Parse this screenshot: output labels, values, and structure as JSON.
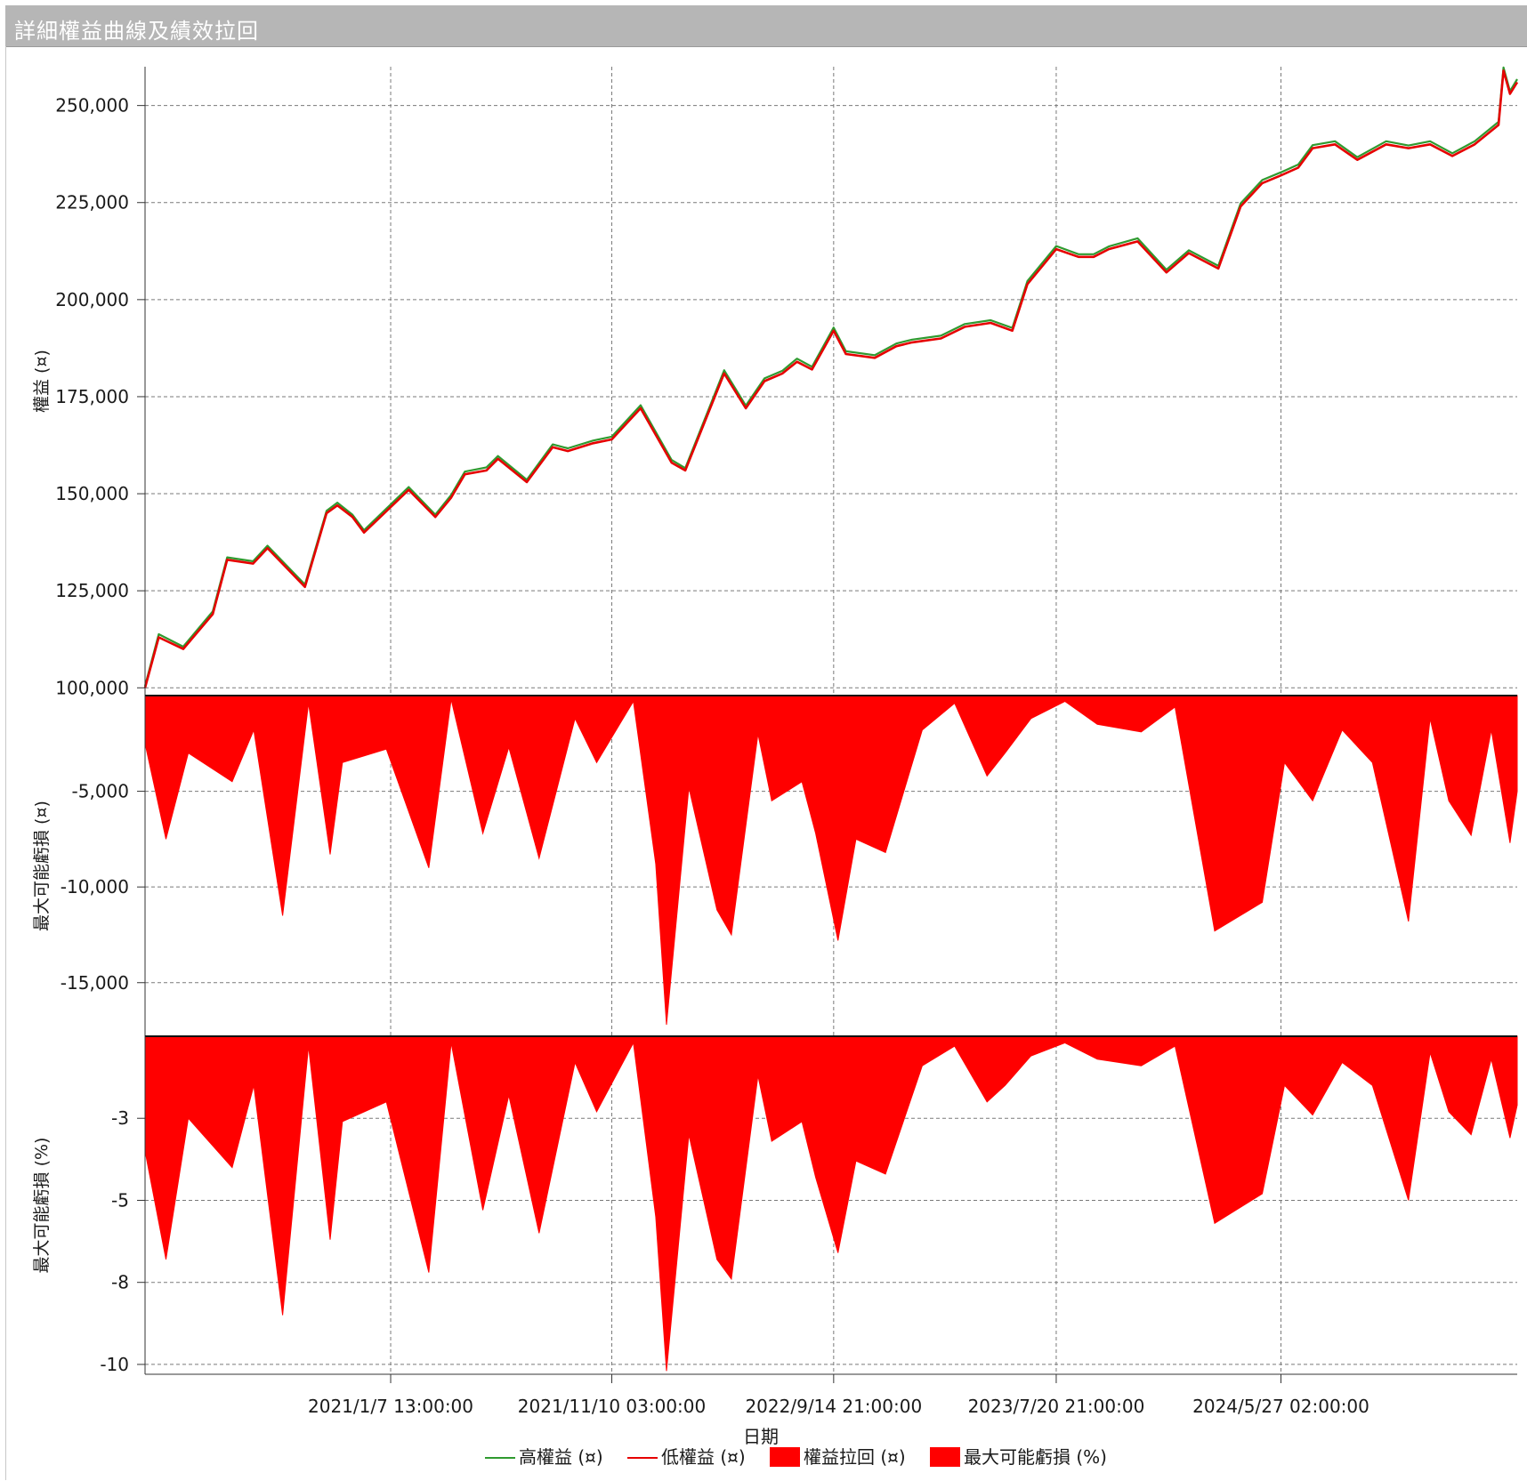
{
  "window": {
    "title": "詳細權益曲線及績效拉回"
  },
  "chart_data": [
    {
      "panel": "equity",
      "type": "line",
      "ylabel": "權益 (¤)",
      "y_ticks": [
        "250,000",
        "225,000",
        "200,000",
        "175,000",
        "150,000",
        "125,000",
        "100,000"
      ],
      "y_tick_values": [
        250000,
        225000,
        200000,
        175000,
        150000,
        125000,
        100000
      ],
      "ylim": [
        98000,
        260000
      ],
      "xlim": [
        "2020-02-01",
        "2025-04-20"
      ],
      "x": [
        "2020-02-01",
        "2020-02-20",
        "2020-03-25",
        "2020-05-05",
        "2020-05-25",
        "2020-06-30",
        "2020-07-20",
        "2020-09-10",
        "2020-10-10",
        "2020-10-25",
        "2020-11-15",
        "2020-12-01",
        "2021-02-01",
        "2021-03-10",
        "2021-04-01",
        "2021-04-20",
        "2021-05-20",
        "2021-06-05",
        "2021-07-15",
        "2021-08-20",
        "2021-09-10",
        "2021-10-15",
        "2021-11-10",
        "2021-12-20",
        "2022-02-01",
        "2022-02-20",
        "2022-03-20",
        "2022-04-15",
        "2022-05-15",
        "2022-06-10",
        "2022-07-05",
        "2022-07-25",
        "2022-08-15",
        "2022-09-14",
        "2022-10-01",
        "2022-11-10",
        "2022-12-10",
        "2023-01-01",
        "2023-02-10",
        "2023-03-15",
        "2023-04-20",
        "2023-05-20",
        "2023-06-10",
        "2023-07-20",
        "2023-08-20",
        "2023-09-10",
        "2023-10-01",
        "2023-11-10",
        "2023-12-20",
        "2024-01-20",
        "2024-03-01",
        "2024-04-01",
        "2024-05-01",
        "2024-05-27",
        "2024-06-20",
        "2024-07-10",
        "2024-08-10",
        "2024-09-10",
        "2024-10-20",
        "2024-11-20",
        "2024-12-20",
        "2025-01-20",
        "2025-02-20",
        "2025-03-25",
        "2025-04-01",
        "2025-04-10",
        "2025-04-20"
      ],
      "series": [
        {
          "name": "低權益 (¤)",
          "color": "#e60000",
          "values": [
            100000,
            113000,
            110000,
            119000,
            133000,
            132000,
            136000,
            126000,
            145000,
            147000,
            144000,
            140000,
            151000,
            144000,
            149000,
            155000,
            156000,
            159000,
            153000,
            162000,
            161000,
            163000,
            164000,
            172000,
            158000,
            156000,
            169000,
            181000,
            172000,
            179000,
            181000,
            184000,
            182000,
            192000,
            186000,
            185000,
            188000,
            189000,
            190000,
            193000,
            194000,
            192000,
            204000,
            213000,
            211000,
            211000,
            213000,
            215000,
            207000,
            212000,
            208000,
            224000,
            230000,
            232000,
            234000,
            239000,
            240000,
            236000,
            240000,
            239000,
            240000,
            237000,
            240000,
            245000,
            259000,
            253000,
            256000
          ]
        },
        {
          "name": "高權益 (¤)",
          "color": "#2f9a2f",
          "values": [
            100500,
            113800,
            110600,
            119700,
            133600,
            132600,
            136600,
            126600,
            145600,
            147700,
            144600,
            140600,
            151700,
            144600,
            149700,
            155700,
            156800,
            159700,
            153600,
            162700,
            161700,
            163700,
            164700,
            172800,
            158700,
            156600,
            169700,
            181800,
            172700,
            179700,
            181700,
            184800,
            182700,
            192800,
            186700,
            185700,
            188700,
            189700,
            190700,
            193700,
            194700,
            192700,
            204800,
            213800,
            211700,
            211700,
            213700,
            215800,
            207700,
            212700,
            208700,
            224800,
            230800,
            232800,
            234800,
            239800,
            240800,
            236700,
            240800,
            239700,
            240800,
            237700,
            240800,
            245800,
            259800,
            253700,
            256800
          ]
        }
      ]
    },
    {
      "panel": "drawdown_abs",
      "type": "area",
      "ylabel": "最大可能虧損 (¤)",
      "y_ticks": [
        "-5,000",
        "-10,000",
        "-15,000"
      ],
      "y_tick_values": [
        -5000,
        -10000,
        -15000
      ],
      "ylim": [
        -17800,
        0
      ],
      "series": [
        {
          "name": "權益拉回 (¤)",
          "color": "#ff0000",
          "x": [
            "2020-02-01",
            "2020-03-01",
            "2020-04-01",
            "2020-06-01",
            "2020-07-01",
            "2020-08-10",
            "2020-09-15",
            "2020-10-15",
            "2020-11-01",
            "2021-01-01",
            "2021-03-01",
            "2021-04-01",
            "2021-05-15",
            "2021-06-20",
            "2021-08-01",
            "2021-09-20",
            "2021-10-20",
            "2021-12-10",
            "2022-01-10",
            "2022-01-25",
            "2022-02-25",
            "2022-04-05",
            "2022-04-25",
            "2022-06-01",
            "2022-06-20",
            "2022-08-01",
            "2022-08-20",
            "2022-09-20",
            "2022-10-15",
            "2022-11-25",
            "2023-01-15",
            "2023-03-01",
            "2023-04-15",
            "2023-05-10",
            "2023-06-15",
            "2023-08-01",
            "2023-09-15",
            "2023-11-15",
            "2024-01-01",
            "2024-02-25",
            "2024-05-01",
            "2024-06-01",
            "2024-07-10",
            "2024-08-20",
            "2024-10-01",
            "2024-11-20",
            "2024-12-20",
            "2025-01-15",
            "2025-02-15",
            "2025-03-15",
            "2025-04-10",
            "2025-04-20"
          ],
          "values": [
            -2500,
            -7500,
            -3000,
            -4500,
            -1800,
            -11500,
            -400,
            -8300,
            -3500,
            -2800,
            -9000,
            -200,
            -7200,
            -2700,
            -8500,
            -1200,
            -3500,
            -300,
            -8800,
            -17200,
            -4800,
            -11200,
            -12500,
            -2000,
            -5500,
            -4500,
            -7200,
            -12800,
            -7500,
            -8200,
            -1800,
            -400,
            -4200,
            -3000,
            -1200,
            -300,
            -1500,
            -1900,
            -600,
            -12300,
            -10800,
            -3500,
            -5500,
            -1800,
            -3500,
            -11800,
            -1200,
            -5500,
            -7300,
            -1800,
            -7700,
            -5000
          ]
        }
      ]
    },
    {
      "panel": "drawdown_pct",
      "type": "area",
      "ylabel": "最大可能虧損 (%)",
      "y_ticks": [
        "-3",
        "-5",
        "-8",
        "-10"
      ],
      "y_tick_values": [
        -2.5,
        -5,
        -7.5,
        -10
      ],
      "ylim": [
        -10.3,
        0
      ],
      "series": [
        {
          "name": "最大可能虧損 (%)",
          "color": "#ff0000",
          "x": [
            "2020-02-01",
            "2020-03-01",
            "2020-04-01",
            "2020-06-01",
            "2020-07-01",
            "2020-08-10",
            "2020-09-15",
            "2020-10-15",
            "2020-11-01",
            "2021-01-01",
            "2021-03-01",
            "2021-04-01",
            "2021-05-15",
            "2021-06-20",
            "2021-08-01",
            "2021-09-20",
            "2021-10-20",
            "2021-12-10",
            "2022-01-10",
            "2022-01-25",
            "2022-02-25",
            "2022-04-05",
            "2022-04-25",
            "2022-06-01",
            "2022-06-20",
            "2022-08-01",
            "2022-08-20",
            "2022-09-20",
            "2022-10-15",
            "2022-11-25",
            "2023-01-15",
            "2023-03-01",
            "2023-04-15",
            "2023-05-10",
            "2023-06-15",
            "2023-08-01",
            "2023-09-15",
            "2023-11-15",
            "2024-01-01",
            "2024-02-25",
            "2024-05-01",
            "2024-06-01",
            "2024-07-10",
            "2024-08-20",
            "2024-10-01",
            "2024-11-20",
            "2024-12-20",
            "2025-01-15",
            "2025-02-15",
            "2025-03-15",
            "2025-04-10",
            "2025-04-20"
          ],
          "values": [
            -3.5,
            -6.8,
            -2.5,
            -4.0,
            -1.5,
            -8.5,
            -0.3,
            -6.2,
            -2.6,
            -2.0,
            -7.2,
            -0.2,
            -5.3,
            -1.8,
            -6.0,
            -0.8,
            -2.3,
            -0.2,
            -5.5,
            -10.2,
            -3.0,
            -6.8,
            -7.4,
            -1.2,
            -3.2,
            -2.6,
            -4.3,
            -6.6,
            -3.8,
            -4.2,
            -0.9,
            -0.3,
            -2.0,
            -1.5,
            -0.6,
            -0.2,
            -0.7,
            -0.9,
            -0.3,
            -5.7,
            -4.8,
            -1.5,
            -2.4,
            -0.8,
            -1.5,
            -5.0,
            -0.5,
            -2.3,
            -3.0,
            -0.7,
            -3.1,
            -2.1
          ]
        }
      ]
    }
  ],
  "x_axis": {
    "label": "日期",
    "ticks": [
      "2021/1/7 13:00:00",
      "2021/11/10 03:00:00",
      "2022/9/14 21:00:00",
      "2023/7/20 21:00:00",
      "2024/5/27 02:00:00"
    ],
    "tick_dates": [
      "2021-01-07",
      "2021-11-10",
      "2022-09-14",
      "2023-07-20",
      "2024-05-27"
    ]
  },
  "legend": {
    "placement": "bottom",
    "items": [
      {
        "label": "高權益 (¤)",
        "kind": "line",
        "color": "#2f9a2f"
      },
      {
        "label": "低權益 (¤)",
        "kind": "line",
        "color": "#e60000"
      },
      {
        "label": "權益拉回 (¤)",
        "kind": "box",
        "color": "#ff0000"
      },
      {
        "label": "最大可能虧損 (%)",
        "kind": "box",
        "color": "#ff0000"
      }
    ]
  }
}
